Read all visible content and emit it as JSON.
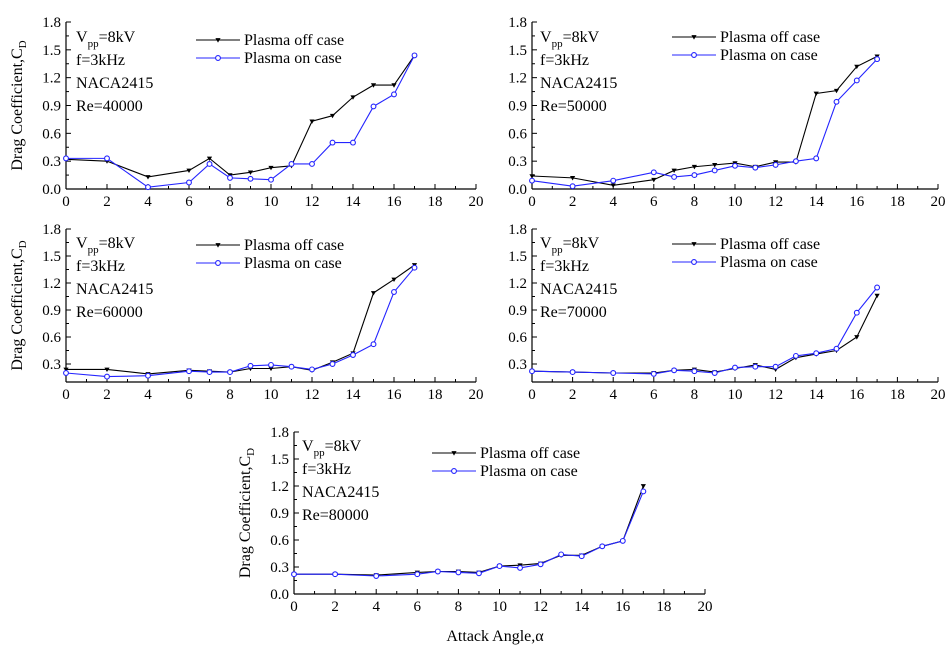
{
  "figure": {
    "ylabel": "Drag Coefficient,C",
    "ylabel_sub": "D",
    "xlabel": "Attack Angle,α",
    "legend": {
      "off_label": "Plasma off case",
      "on_label": "Plasma on case"
    },
    "colors": {
      "off": "#000000",
      "on": "#2424ff"
    }
  },
  "chart_data": [
    {
      "type": "line",
      "annotation": {
        "vpp_v": "V",
        "vpp_sub": "pp",
        "vpp_value": "=8kV",
        "freq": "f=3kHz",
        "airfoil": "NACA2415",
        "re": "Re=40000"
      },
      "xlim": [
        0,
        20
      ],
      "ylim": [
        0,
        1.8
      ],
      "xticks": [
        0,
        2,
        4,
        6,
        8,
        10,
        12,
        14,
        16,
        18,
        20
      ],
      "yticks": [
        0.0,
        0.3,
        0.6,
        0.9,
        1.2,
        1.5,
        1.8
      ],
      "ytick_labels": [
        "0.0",
        "0.3",
        "0.6",
        "0.9",
        "1.2",
        "1.5",
        "1.8"
      ],
      "show_ylabel": true,
      "series": [
        {
          "name": "Plasma off case",
          "x": [
            0,
            2,
            4,
            6,
            7,
            8,
            9,
            10,
            11,
            12,
            13,
            14,
            15,
            16,
            17
          ],
          "y": [
            0.32,
            0.3,
            0.13,
            0.2,
            0.33,
            0.15,
            0.18,
            0.23,
            0.25,
            0.73,
            0.79,
            0.99,
            1.12,
            1.12,
            1.44
          ]
        },
        {
          "name": "Plasma on case",
          "x": [
            0,
            2,
            4,
            6,
            7,
            8,
            9,
            10,
            11,
            12,
            13,
            14,
            15,
            16,
            17
          ],
          "y": [
            0.33,
            0.33,
            0.02,
            0.07,
            0.27,
            0.12,
            0.11,
            0.1,
            0.27,
            0.27,
            0.5,
            0.5,
            0.89,
            1.02,
            1.44
          ]
        }
      ]
    },
    {
      "type": "line",
      "annotation": {
        "vpp_v": "V",
        "vpp_sub": "pp",
        "vpp_value": "=8kV",
        "freq": "f=3kHz",
        "airfoil": "NACA2415",
        "re": "Re=50000"
      },
      "xlim": [
        0,
        20
      ],
      "ylim": [
        0,
        1.8
      ],
      "xticks": [
        0,
        2,
        4,
        6,
        8,
        10,
        12,
        14,
        16,
        18,
        20
      ],
      "yticks": [
        0.0,
        0.3,
        0.6,
        0.9,
        1.2,
        1.5,
        1.8
      ],
      "ytick_labels": [
        "0.0",
        "0.3",
        "0.6",
        "0.9",
        "1.2",
        "1.5",
        "1.8"
      ],
      "show_ylabel": false,
      "series": [
        {
          "name": "Plasma off case",
          "x": [
            0,
            2,
            4,
            6,
            7,
            8,
            9,
            10,
            11,
            12,
            13,
            14,
            15,
            16,
            17
          ],
          "y": [
            0.14,
            0.12,
            0.04,
            0.1,
            0.2,
            0.24,
            0.26,
            0.28,
            0.24,
            0.29,
            0.29,
            1.03,
            1.06,
            1.32,
            1.43
          ]
        },
        {
          "name": "Plasma on case",
          "x": [
            0,
            2,
            4,
            6,
            7,
            8,
            9,
            10,
            11,
            12,
            13,
            14,
            15,
            16,
            17
          ],
          "y": [
            0.09,
            0.03,
            0.09,
            0.18,
            0.13,
            0.15,
            0.2,
            0.25,
            0.23,
            0.26,
            0.3,
            0.33,
            0.94,
            1.17,
            1.4
          ]
        }
      ]
    },
    {
      "type": "line",
      "annotation": {
        "vpp_v": "V",
        "vpp_sub": "pp",
        "vpp_value": "=8kV",
        "freq": "f=3kHz",
        "airfoil": "NACA2415",
        "re": "Re=60000"
      },
      "xlim": [
        0,
        20
      ],
      "ylim": [
        0.1,
        1.8
      ],
      "xticks": [
        0,
        2,
        4,
        6,
        8,
        10,
        12,
        14,
        16,
        18,
        20
      ],
      "yticks": [
        0.3,
        0.6,
        0.9,
        1.2,
        1.5,
        1.8
      ],
      "ytick_labels": [
        "0.3",
        "0.6",
        "0.9",
        "1.2",
        "1.5",
        "1.8"
      ],
      "show_ylabel": true,
      "series": [
        {
          "name": "Plasma off case",
          "x": [
            0,
            2,
            4,
            6,
            7,
            8,
            9,
            10,
            11,
            12,
            13,
            14,
            15,
            16,
            17
          ],
          "y": [
            0.24,
            0.24,
            0.19,
            0.23,
            0.22,
            0.21,
            0.25,
            0.25,
            0.27,
            0.23,
            0.32,
            0.42,
            1.09,
            1.24,
            1.4
          ]
        },
        {
          "name": "Plasma on case",
          "x": [
            0,
            2,
            4,
            6,
            7,
            8,
            9,
            10,
            11,
            12,
            13,
            14,
            15,
            16,
            17
          ],
          "y": [
            0.2,
            0.16,
            0.17,
            0.22,
            0.21,
            0.21,
            0.28,
            0.29,
            0.27,
            0.24,
            0.3,
            0.4,
            0.52,
            1.1,
            1.37
          ]
        }
      ]
    },
    {
      "type": "line",
      "annotation": {
        "vpp_v": "V",
        "vpp_sub": "pp",
        "vpp_value": "=8kV",
        "freq": "f=3kHz",
        "airfoil": "NACA2415",
        "re": "Re=70000"
      },
      "xlim": [
        0,
        20
      ],
      "ylim": [
        0.1,
        1.8
      ],
      "xticks": [
        0,
        2,
        4,
        6,
        8,
        10,
        12,
        14,
        16,
        18,
        20
      ],
      "yticks": [
        0.3,
        0.6,
        0.9,
        1.2,
        1.5,
        1.8
      ],
      "ytick_labels": [
        "0.3",
        "0.6",
        "0.9",
        "1.2",
        "1.5",
        "1.8"
      ],
      "show_ylabel": false,
      "series": [
        {
          "name": "Plasma off case",
          "x": [
            0,
            2,
            4,
            6,
            7,
            8,
            9,
            10,
            11,
            12,
            13,
            14,
            15,
            16,
            17
          ],
          "y": [
            0.22,
            0.21,
            0.2,
            0.2,
            0.23,
            0.24,
            0.21,
            0.25,
            0.29,
            0.24,
            0.37,
            0.41,
            0.45,
            0.6,
            1.06
          ]
        },
        {
          "name": "Plasma on case",
          "x": [
            0,
            2,
            4,
            6,
            7,
            8,
            9,
            10,
            11,
            12,
            13,
            14,
            15,
            16,
            17
          ],
          "y": [
            0.22,
            0.21,
            0.2,
            0.19,
            0.23,
            0.22,
            0.2,
            0.26,
            0.27,
            0.27,
            0.39,
            0.42,
            0.47,
            0.87,
            1.15
          ]
        }
      ]
    },
    {
      "type": "line",
      "annotation": {
        "vpp_v": "V",
        "vpp_sub": "pp",
        "vpp_value": "=8kV",
        "freq": "f=3kHz",
        "airfoil": "NACA2415",
        "re": "Re=80000"
      },
      "xlim": [
        0,
        20
      ],
      "ylim": [
        0,
        1.8
      ],
      "xticks": [
        0,
        2,
        4,
        6,
        8,
        10,
        12,
        14,
        16,
        18,
        20
      ],
      "yticks": [
        0.0,
        0.3,
        0.6,
        0.9,
        1.2,
        1.5,
        1.8
      ],
      "ytick_labels": [
        "0.0",
        "0.3",
        "0.6",
        "0.9",
        "1.2",
        "1.5",
        "1.8"
      ],
      "show_ylabel": true,
      "series": [
        {
          "name": "Plasma off case",
          "x": [
            0,
            2,
            4,
            6,
            7,
            8,
            9,
            10,
            11,
            12,
            13,
            14,
            15,
            16,
            17
          ],
          "y": [
            0.22,
            0.22,
            0.21,
            0.24,
            0.25,
            0.25,
            0.24,
            0.31,
            0.32,
            0.34,
            0.43,
            0.43,
            0.53,
            0.59,
            1.2
          ]
        },
        {
          "name": "Plasma on case",
          "x": [
            0,
            2,
            4,
            6,
            7,
            8,
            9,
            10,
            11,
            12,
            13,
            14,
            15,
            16,
            17
          ],
          "y": [
            0.22,
            0.22,
            0.2,
            0.22,
            0.25,
            0.24,
            0.23,
            0.31,
            0.29,
            0.33,
            0.44,
            0.42,
            0.53,
            0.59,
            1.14
          ]
        }
      ]
    }
  ]
}
